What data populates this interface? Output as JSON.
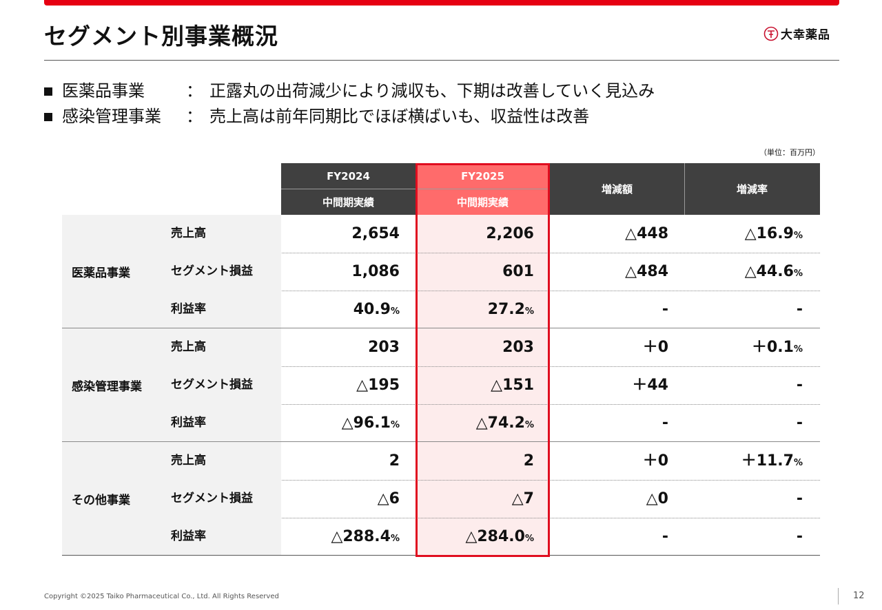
{
  "slide": {
    "title": "セグメント別事業概況",
    "logo_text": "大幸薬品",
    "page_number": "12",
    "copyright": "Copyright ©2025   Taiko Pharmaceutical Co., Ltd. All Rights Reserved",
    "accent_color": "#e60012"
  },
  "bullets": [
    {
      "segment": "医薬品事業",
      "colon": "：",
      "text": "正露丸の出荷減少により減収も、下期は改善していく見込み"
    },
    {
      "segment": "感染管理事業",
      "colon": "：",
      "text": "売上高は前年同期比でほぼ横ばいも、収益性は改善"
    }
  ],
  "table": {
    "unit_note": "（単位：百万円）",
    "headers": {
      "fy2024": "FY2024",
      "fy2024_sub": "中間期実績",
      "fy2025": "FY2025",
      "fy2025_sub": "中間期実績",
      "change": "増減額",
      "change_rate": "増減率"
    },
    "segments": [
      {
        "name": "医薬品事業",
        "rows": [
          {
            "label": "売上高",
            "fy2024": "2,654",
            "fy2024_pct": "",
            "fy2025": "2,206",
            "fy2025_pct": "",
            "change": "△448",
            "rate": "△16.9",
            "rate_pct": "%"
          },
          {
            "label": "セグメント損益",
            "fy2024": "1,086",
            "fy2024_pct": "",
            "fy2025": "601",
            "fy2025_pct": "",
            "change": "△484",
            "rate": "△44.6",
            "rate_pct": "%"
          },
          {
            "label": "利益率",
            "fy2024": "40.9",
            "fy2024_pct": "%",
            "fy2025": "27.2",
            "fy2025_pct": "%",
            "change": "-",
            "rate": "-",
            "rate_pct": ""
          }
        ]
      },
      {
        "name": "感染管理事業",
        "rows": [
          {
            "label": "売上高",
            "fy2024": "203",
            "fy2024_pct": "",
            "fy2025": "203",
            "fy2025_pct": "",
            "change": "＋0",
            "rate": "＋0.1",
            "rate_pct": "%"
          },
          {
            "label": "セグメント損益",
            "fy2024": "△195",
            "fy2024_pct": "",
            "fy2025": "△151",
            "fy2025_pct": "",
            "change": "＋44",
            "rate": "-",
            "rate_pct": ""
          },
          {
            "label": "利益率",
            "fy2024": "△96.1",
            "fy2024_pct": "%",
            "fy2025": "△74.2",
            "fy2025_pct": "%",
            "change": "-",
            "rate": "-",
            "rate_pct": ""
          }
        ]
      },
      {
        "name": "その他事業",
        "rows": [
          {
            "label": "売上高",
            "fy2024": "2",
            "fy2024_pct": "",
            "fy2025": "2",
            "fy2025_pct": "",
            "change": "＋0",
            "rate": "＋11.7",
            "rate_pct": "%"
          },
          {
            "label": "セグメント損益",
            "fy2024": "△6",
            "fy2024_pct": "",
            "fy2025": "△7",
            "fy2025_pct": "",
            "change": "△0",
            "rate": "-",
            "rate_pct": ""
          },
          {
            "label": "利益率",
            "fy2024": "△288.4",
            "fy2024_pct": "%",
            "fy2025": "△284.0",
            "fy2025_pct": "%",
            "change": "-",
            "rate": "-",
            "rate_pct": ""
          }
        ]
      }
    ]
  }
}
